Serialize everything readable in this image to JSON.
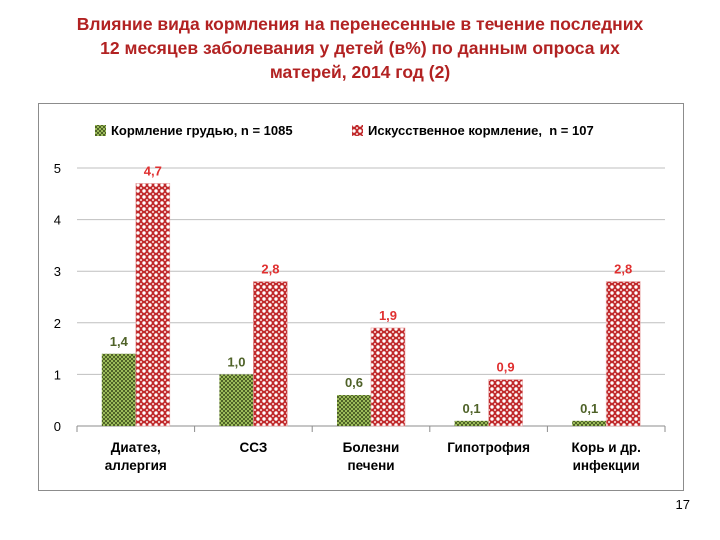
{
  "title": {
    "lines": [
      "Влияние вида кормления на перенесенные в течение последних",
      "12 месяцев заболевания у детей (в%) по данным опроса их",
      "матерей, 2014 год (2)"
    ]
  },
  "page_number": "17",
  "chart_data": {
    "type": "bar",
    "title": "",
    "xlabel": "",
    "ylabel": "",
    "ylim": [
      0,
      5
    ],
    "yticks": [
      "0",
      "1",
      "2",
      "3",
      "4",
      "5"
    ],
    "grid": true,
    "legend_position": "top",
    "categories": [
      [
        "Диатез,",
        "аллергия"
      ],
      [
        "ССЗ"
      ],
      [
        "Болезни",
        "печени"
      ],
      [
        "Гипотрофия"
      ],
      [
        "Корь и др.",
        "инфекции"
      ]
    ],
    "series": [
      {
        "name": "Кормление грудью, n = 1085",
        "values": [
          1.4,
          1.0,
          0.6,
          0.1,
          0.1
        ],
        "labels": [
          "1,4",
          "1,0",
          "0,6",
          "0,1",
          "0,1"
        ],
        "color": "#4f6228",
        "pattern": "checker",
        "label_color": "#4f6228"
      },
      {
        "name": "Искусственное кормление,  n = 107",
        "values": [
          4.7,
          2.8,
          1.9,
          0.9,
          2.8
        ],
        "labels": [
          "4,7",
          "2,8",
          "1,9",
          "0,9",
          "2,8"
        ],
        "color": "#c0292b",
        "pattern": "dots",
        "label_color": "#e03030"
      }
    ]
  }
}
